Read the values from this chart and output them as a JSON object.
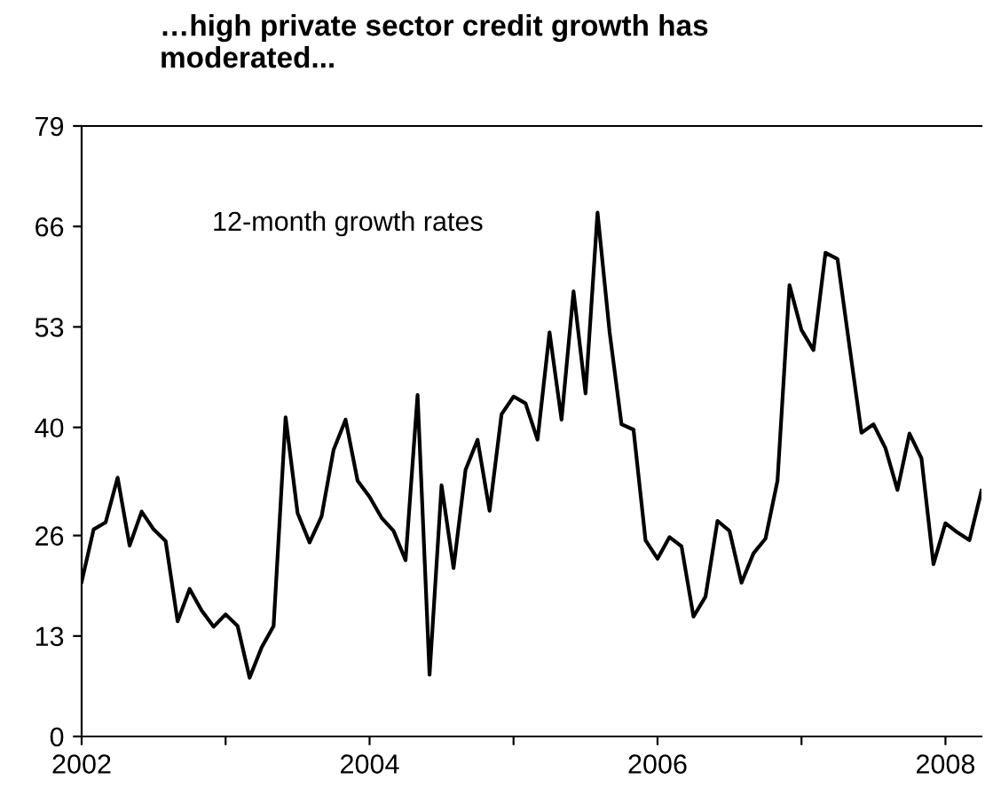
{
  "chart_data": {
    "type": "line",
    "title": "…high private sector credit growth has\nmoderated...",
    "annotations": [
      "12-month growth rates"
    ],
    "x": [
      "2002-01",
      "2002-02",
      "2002-03",
      "2002-04",
      "2002-05",
      "2002-06",
      "2002-07",
      "2002-08",
      "2002-09",
      "2002-10",
      "2002-11",
      "2002-12",
      "2003-01",
      "2003-02",
      "2003-03",
      "2003-04",
      "2003-05",
      "2003-06",
      "2003-07",
      "2003-08",
      "2003-09",
      "2003-10",
      "2003-11",
      "2003-12",
      "2004-01",
      "2004-02",
      "2004-03",
      "2004-04",
      "2004-05",
      "2004-06",
      "2004-07",
      "2004-08",
      "2004-09",
      "2004-10",
      "2004-11",
      "2004-12",
      "2005-01",
      "2005-02",
      "2005-03",
      "2005-04",
      "2005-05",
      "2005-06",
      "2005-07",
      "2005-08",
      "2005-09",
      "2005-10",
      "2005-11",
      "2005-12",
      "2006-01",
      "2006-02",
      "2006-03",
      "2006-04",
      "2006-05",
      "2006-06",
      "2006-07",
      "2006-08",
      "2006-09",
      "2006-10",
      "2006-11",
      "2006-12",
      "2007-01",
      "2007-02",
      "2007-03",
      "2007-04",
      "2007-05",
      "2007-06",
      "2007-07",
      "2007-08",
      "2007-09",
      "2007-10",
      "2007-11",
      "2007-12",
      "2008-01",
      "2008-02",
      "2008-03",
      "2008-04"
    ],
    "series": [
      {
        "color": "#000000",
        "values": [
          20,
          26.8,
          27.7,
          33.5,
          24.7,
          29.1,
          26.8,
          25.3,
          14.9,
          19.1,
          16.3,
          14.2,
          15.8,
          14.3,
          7.6,
          11.5,
          14.3,
          41.3,
          28.9,
          25.1,
          28.5,
          37.1,
          41.0,
          33.1,
          31.0,
          28.3,
          26.6,
          22.8,
          44.2,
          8.0,
          32.5,
          21.8,
          34.5,
          38.4,
          29.2,
          41.7,
          44.0,
          43.1,
          38.4,
          52.3,
          41.0,
          57.6,
          44.4,
          67.8,
          52.4,
          40.4,
          39.7,
          25.4,
          23.0,
          25.8,
          24.6,
          15.5,
          18.1,
          27.9,
          26.6,
          19.9,
          23.7,
          25.6,
          33.1,
          58.4,
          52.6,
          50.0,
          62.6,
          61.8,
          50.5,
          39.3,
          40.4,
          37.3,
          31.9,
          39.2,
          36.0,
          22.3,
          27.6,
          26.4,
          25.4,
          31.8
        ]
      }
    ],
    "xlim": [
      "2002-01",
      "2008-04"
    ],
    "xticks": [
      {
        "value": "2002-01",
        "label": "2002"
      },
      {
        "value": "2003-01",
        "label": null
      },
      {
        "value": "2004-01",
        "label": "2004"
      },
      {
        "value": "2005-01",
        "label": null
      },
      {
        "value": "2006-01",
        "label": "2006"
      },
      {
        "value": "2007-01",
        "label": null
      },
      {
        "value": "2008-01",
        "label": "2008"
      }
    ],
    "ylim": [
      0,
      79
    ],
    "yticks": [
      0,
      13,
      26,
      40,
      53,
      66,
      79
    ],
    "grid": false,
    "marker": "none",
    "line_style": "solid"
  }
}
